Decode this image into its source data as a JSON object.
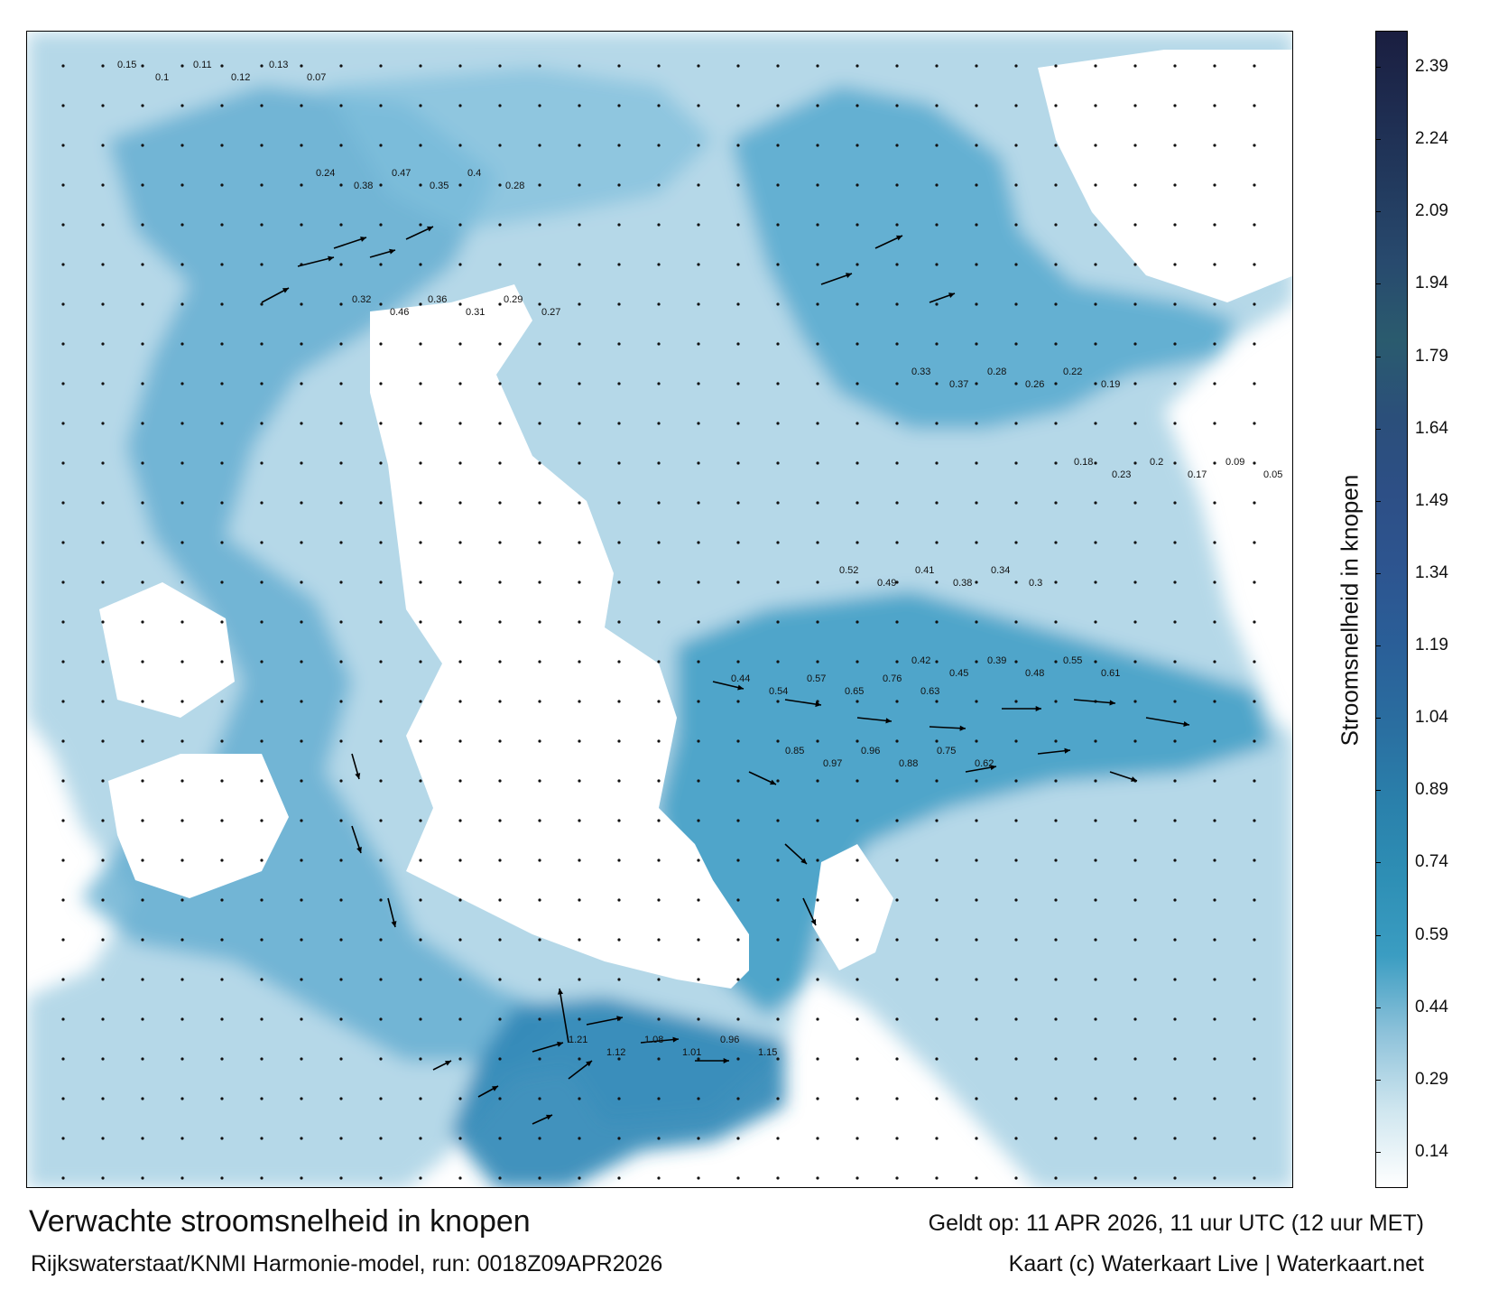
{
  "map": {
    "title": "Verwachte stroomsnelheid in knopen",
    "valid_time": "Geldt op: 11 APR 2026, 11 uur UTC (12 uur MET)",
    "source": "Rijkswaterstaat/KNMI Harmonie-model, run: 0018Z09APR2026",
    "credit": "Kaart (c) Waterkaart Live | Waterkaart.net"
  },
  "legend": {
    "title": "Stroomsnelheid in knopen",
    "ticks": [
      "0.14",
      "0.29",
      "0.44",
      "0.59",
      "0.74",
      "0.89",
      "1.04",
      "1.19",
      "1.34",
      "1.49",
      "1.64",
      "1.79",
      "1.94",
      "2.09",
      "2.24",
      "2.39"
    ],
    "colors": [
      "#ffffff",
      "#cfe6ef",
      "#8ec2da",
      "#3b9dc2",
      "#2e8fb5",
      "#2a80ab",
      "#2a6ea0",
      "#2a5f98",
      "#2d5590",
      "#2d4f86",
      "#2b4f7a",
      "#2a5b6e",
      "#284a6e",
      "#223a5e",
      "#1e2c50",
      "#1a1e40"
    ]
  },
  "speed_labels": [
    [
      "0.15",
      "0.1",
      "0.11",
      "0.12",
      "0.13",
      "0.07"
    ],
    [
      "0.24",
      "0.38",
      "0.47",
      "0.35",
      "0.4",
      "0.28"
    ],
    [
      "0.32",
      "0.46",
      "0.36",
      "0.31",
      "0.29",
      "0.27"
    ],
    [
      "0.44",
      "0.54",
      "0.57",
      "0.65",
      "0.76",
      "0.63"
    ],
    [
      "0.85",
      "0.97",
      "0.96",
      "0.88",
      "0.75",
      "0.62"
    ],
    [
      "0.42",
      "0.45",
      "0.39",
      "0.48",
      "0.55",
      "0.61"
    ],
    [
      "1.21",
      "1.12",
      "1.08",
      "1.01",
      "0.96",
      "1.15"
    ],
    [
      "0.18",
      "0.23",
      "0.2",
      "0.17",
      "0.09",
      "0.05"
    ],
    [
      "0.33",
      "0.37",
      "0.28",
      "0.26",
      "0.22",
      "0.19"
    ],
    [
      "0.52",
      "0.49",
      "0.41",
      "0.38",
      "0.34",
      "0.3"
    ]
  ]
}
